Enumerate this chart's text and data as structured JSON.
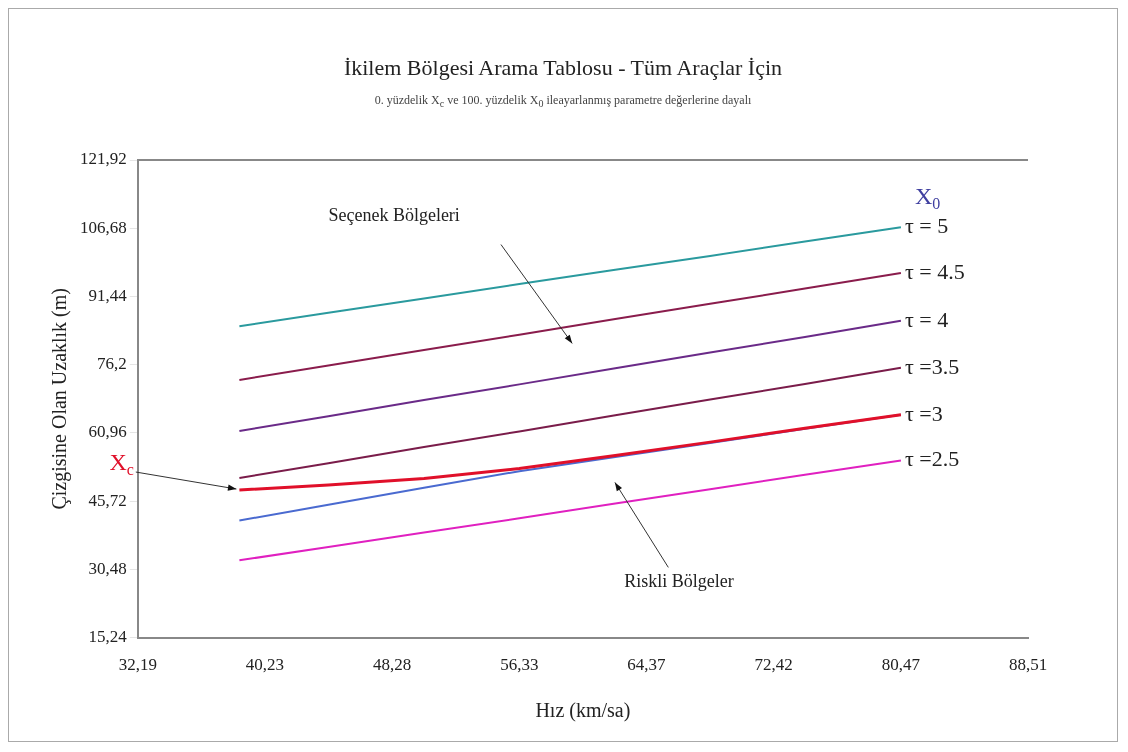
{
  "chart_data": {
    "type": "line",
    "title": "İkilem Bölgesi Arama Tablosu - Tüm Araçlar İçin",
    "subtitle": "0. yüzdelik X$_{c}$ ve 100. yüzdelik X$_{0}$ ileayarlanmış parametre değerlerine dayalı",
    "xlabel": "Hız (km/sa)",
    "ylabel": "Çizgisine Olan Uzaklık (m)",
    "legend_title": "X$_{0}$",
    "x": [
      38.62,
      44.25,
      50.3,
      56.33,
      62.4,
      68.4,
      74.4,
      80.47
    ],
    "series": [
      {
        "name": "τ = 5",
        "color": "#2a9a9e",
        "values": [
          84.8,
          87.8,
          91.0,
          94.2,
          97.4,
          100.5,
          103.7,
          106.9
        ]
      },
      {
        "name": "τ = 4.5",
        "color": "#8a1c4c",
        "values": [
          72.8,
          76.0,
          79.5,
          82.9,
          86.4,
          89.8,
          93.2,
          96.7
        ]
      },
      {
        "name": "τ = 4",
        "color": "#6a2a88",
        "values": [
          61.4,
          64.7,
          68.3,
          71.8,
          75.4,
          78.9,
          82.4,
          86.0
        ]
      },
      {
        "name": "τ =3.5",
        "color": "#7a1c4a",
        "values": [
          50.9,
          54.2,
          57.8,
          61.3,
          64.9,
          68.4,
          71.9,
          75.5
        ]
      },
      {
        "name": "X$_{c}$",
        "color": "#e0102a",
        "values": [
          48.2,
          49.3,
          50.8,
          53.0,
          55.9,
          58.9,
          62.0,
          65.0
        ]
      },
      {
        "name": "τ =3",
        "color": "#4a6ad0",
        "values": [
          41.4,
          44.9,
          48.7,
          52.4,
          55.6,
          58.7,
          61.9,
          65.0
        ]
      },
      {
        "name": "τ =2.5",
        "color": "#e020c0",
        "values": [
          32.5,
          35.5,
          38.7,
          41.9,
          45.2,
          48.4,
          51.6,
          54.8
        ]
      }
    ],
    "xlim": [
      32.19,
      88.51
    ],
    "xticks": [
      {
        "value": 32.19,
        "label": "32,19"
      },
      {
        "value": 40.23,
        "label": "40,23"
      },
      {
        "value": 48.28,
        "label": "48,28"
      },
      {
        "value": 56.33,
        "label": "56,33"
      },
      {
        "value": 64.37,
        "label": "64,37"
      },
      {
        "value": 72.42,
        "label": "72,42"
      },
      {
        "value": 80.47,
        "label": "80,47"
      },
      {
        "value": 88.51,
        "label": "88,51"
      }
    ],
    "ylim": [
      15.24,
      121.92
    ],
    "yticks": [
      {
        "value": 15.24,
        "label": "15,24"
      },
      {
        "value": 30.48,
        "label": "30,48"
      },
      {
        "value": 45.72,
        "label": "45,72"
      },
      {
        "value": 60.96,
        "label": "60,96"
      },
      {
        "value": 76.2,
        "label": "76,2"
      },
      {
        "value": 91.44,
        "label": "91,44"
      },
      {
        "value": 106.68,
        "label": "106,68"
      },
      {
        "value": 121.92,
        "label": "121,92"
      }
    ],
    "annotations": [
      "Seçenek Bölgeleri",
      "Riskli Bölgeler"
    ],
    "grid": false,
    "legend": false,
    "marker": "none",
    "line_style": "solid"
  }
}
